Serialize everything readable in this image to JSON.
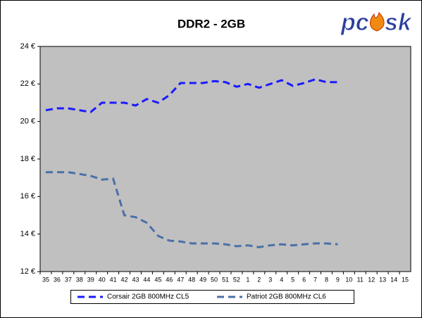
{
  "chart_data": {
    "type": "line",
    "title": "DDR2 - 2GB",
    "logo": [
      "pc",
      "sk"
    ],
    "categories": [
      "35",
      "36",
      "37",
      "38",
      "39",
      "40",
      "41",
      "42",
      "43",
      "44",
      "45",
      "46",
      "47",
      "48",
      "49",
      "50",
      "51",
      "52",
      "1",
      "2",
      "3",
      "4",
      "5",
      "6",
      "7",
      "8",
      "9",
      "10",
      "11",
      "12",
      "13",
      "14",
      "15"
    ],
    "series": [
      {
        "name": "Corsair 2GB 800MHz CL5",
        "color": "#1a1aff",
        "values": [
          20.6,
          20.7,
          20.7,
          20.6,
          20.5,
          21.0,
          21.0,
          21.0,
          20.85,
          21.2,
          21.0,
          21.4,
          22.05,
          22.05,
          22.05,
          22.15,
          22.1,
          21.85,
          22.0,
          21.8,
          22.0,
          22.2,
          21.9,
          22.05,
          22.25,
          22.1,
          22.1,
          null,
          null,
          null,
          null,
          null,
          null
        ]
      },
      {
        "name": "Patriot 2GB 800MHz CL6",
        "color": "#4a70a8",
        "values": [
          17.3,
          17.3,
          17.3,
          17.2,
          17.1,
          16.9,
          16.95,
          15.0,
          14.9,
          14.6,
          13.9,
          13.65,
          13.6,
          13.5,
          13.5,
          13.5,
          13.45,
          13.35,
          13.4,
          13.3,
          13.4,
          13.45,
          13.4,
          13.45,
          13.5,
          13.5,
          13.45,
          null,
          null,
          null,
          null,
          null,
          null
        ]
      }
    ],
    "ylim": [
      12,
      24
    ],
    "yticks": [
      {
        "value": 12,
        "label": "12 €"
      },
      {
        "value": 14,
        "label": "14 €"
      },
      {
        "value": 16,
        "label": "16 €"
      },
      {
        "value": 18,
        "label": "18 €"
      },
      {
        "value": 20,
        "label": "20 €"
      },
      {
        "value": 22,
        "label": "22 €"
      },
      {
        "value": 24,
        "label": "24 €"
      }
    ],
    "grid": false,
    "legend": "bottom",
    "plot_background": "#c0c0c0"
  }
}
